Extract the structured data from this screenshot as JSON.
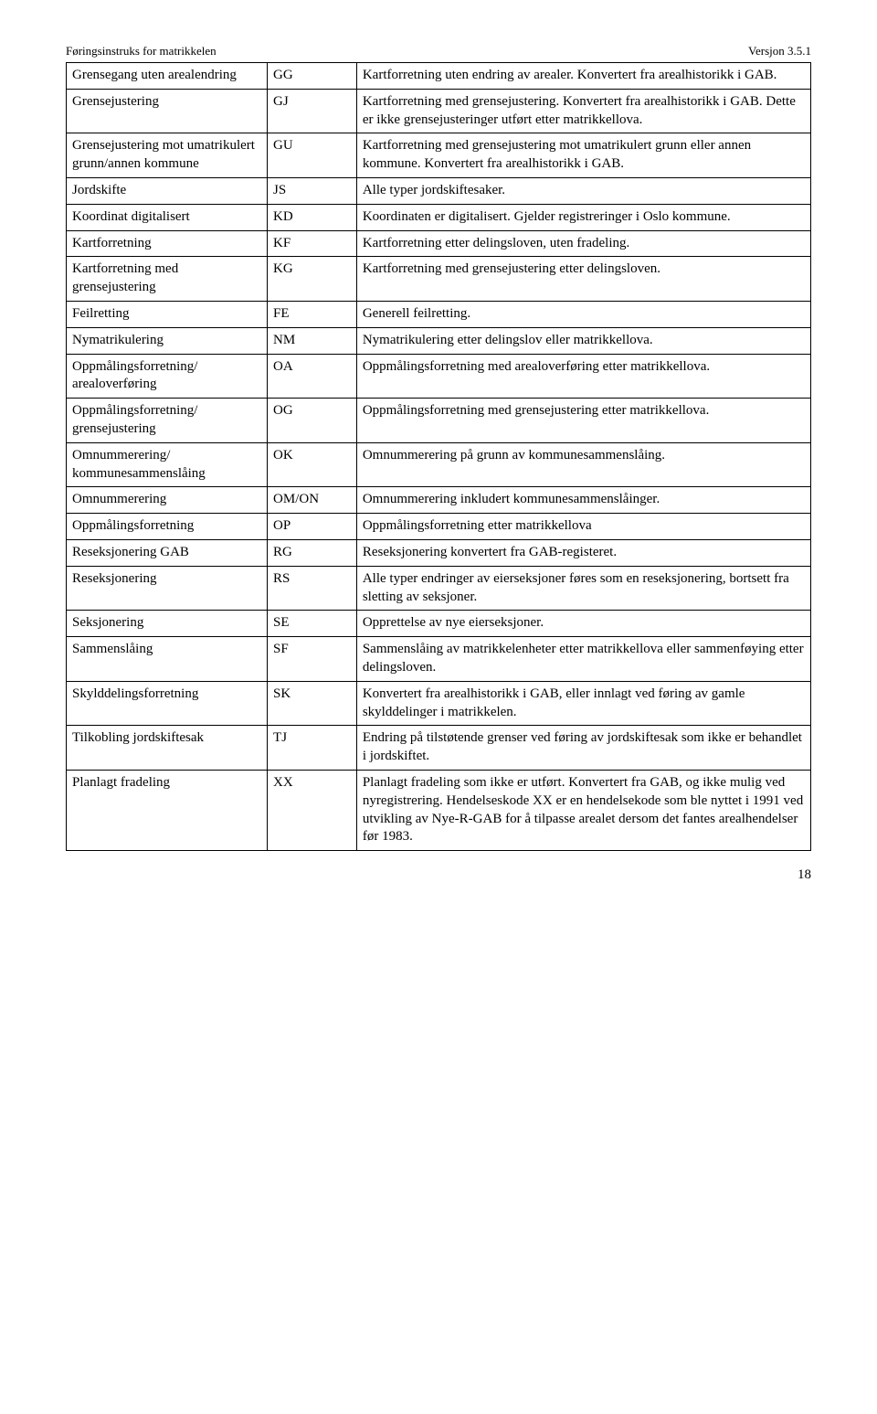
{
  "header": {
    "left": "Føringsinstruks for matrikkelen",
    "right": "Versjon 3.5.1"
  },
  "rows": [
    {
      "c1": "Grensegang uten arealendring",
      "c2": "GG",
      "c3": "Kartforretning uten endring av arealer. Konvertert fra arealhistorikk i GAB."
    },
    {
      "c1": "Grensejustering",
      "c2": "GJ",
      "c3": "Kartforretning med grensejustering. Konvertert fra arealhistorikk i GAB. Dette er ikke grensejusteringer utført etter matrikkellova."
    },
    {
      "c1": "Grensejustering mot umatrikulert grunn/annen kommune",
      "c2": "GU",
      "c3": "Kartforretning med grensejustering mot umatrikulert grunn eller annen kommune. Konvertert fra arealhistorikk i GAB."
    },
    {
      "c1": "Jordskifte",
      "c2": "JS",
      "c3": "Alle typer jordskiftesaker."
    },
    {
      "c1": "Koordinat digitalisert",
      "c2": "KD",
      "c3": "Koordinaten er digitalisert. Gjelder registreringer i Oslo kommune."
    },
    {
      "c1": "Kartforretning",
      "c2": "KF",
      "c3": "Kartforretning etter delingsloven, uten fradeling."
    },
    {
      "c1": "Kartforretning med grensejustering",
      "c2": "KG",
      "c3": "Kartforretning med grensejustering etter delingsloven."
    },
    {
      "c1": "Feilretting",
      "c2": "FE",
      "c3": "Generell feilretting."
    },
    {
      "c1": "Nymatrikulering",
      "c2": "NM",
      "c3": "Nymatrikulering etter delingslov eller matrikkellova."
    },
    {
      "c1": "Oppmålingsforretning/ arealoverføring",
      "c2": "OA",
      "c3": "Oppmålingsforretning med arealoverføring etter matrikkellova."
    },
    {
      "c1": "Oppmålingsforretning/ grensejustering",
      "c2": "OG",
      "c3": "Oppmålingsforretning med grensejustering etter matrikkellova."
    },
    {
      "c1": "Omnummerering/ kommunesammenslåing",
      "c2": "OK",
      "c3": "Omnummerering på grunn av kommunesammenslåing."
    },
    {
      "c1": "Omnummerering",
      "c2": "OM/ON",
      "c3": "Omnummerering inkludert kommunesammenslåinger."
    },
    {
      "c1": "Oppmålingsforretning",
      "c2": "OP",
      "c3": "Oppmålingsforretning etter matrikkellova"
    },
    {
      "c1": "Reseksjonering GAB",
      "c2": "RG",
      "c3": "Reseksjonering konvertert fra GAB-registeret."
    },
    {
      "c1": "Reseksjonering",
      "c2": "RS",
      "c3": "Alle typer endringer av eierseksjoner føres som en reseksjonering, bortsett fra sletting av seksjoner."
    },
    {
      "c1": "Seksjonering",
      "c2": "SE",
      "c3": "Opprettelse av nye eierseksjoner."
    },
    {
      "c1": "Sammenslåing",
      "c2": "SF",
      "c3": "Sammenslåing av matrikkelenheter etter matrikkellova eller sammenføying etter delingsloven."
    },
    {
      "c1": "Skylddelingsforretning",
      "c2": "SK",
      "c3": "Konvertert fra arealhistorikk i GAB, eller innlagt ved føring av gamle skylddelinger i matrikkelen."
    },
    {
      "c1": "Tilkobling jordskiftesak",
      "c2": "TJ",
      "c3": "Endring på tilstøtende grenser ved føring av jordskiftesak som ikke er behandlet i jordskiftet."
    },
    {
      "c1": "Planlagt fradeling",
      "c2": "XX",
      "c3": "Planlagt fradeling som ikke er utført. Konvertert fra GAB, og ikke mulig ved nyregistrering. Hendelseskode XX er en hendelsekode som ble nyttet i 1991 ved utvikling av Nye-R-GAB for å tilpasse arealet dersom det fantes arealhendelser før 1983."
    }
  ],
  "pageNumber": "18"
}
